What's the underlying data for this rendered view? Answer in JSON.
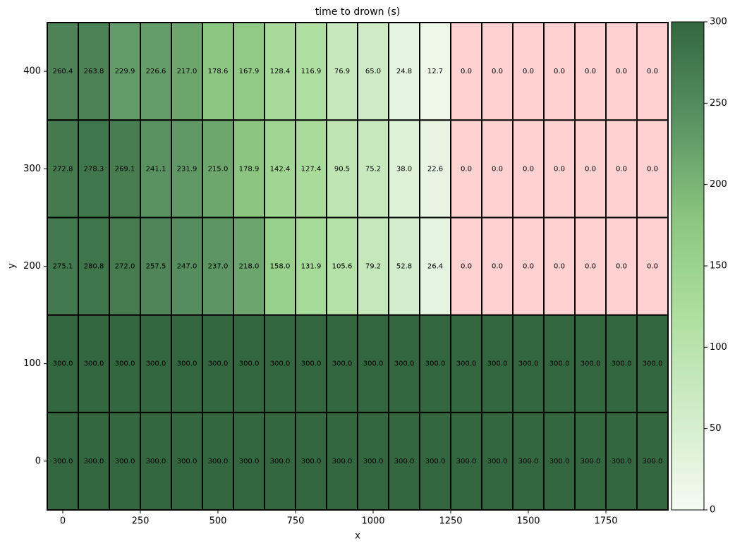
{
  "chart_data": {
    "type": "heatmap",
    "title": "time to drown (s)",
    "xlabel": "x",
    "ylabel": "y",
    "x": [
      0,
      100,
      200,
      300,
      400,
      500,
      600,
      700,
      800,
      900,
      1000,
      1100,
      1200,
      1300,
      1400,
      1500,
      1600,
      1700,
      1800,
      1900
    ],
    "y": [
      0,
      100,
      200,
      300,
      400
    ],
    "z": [
      [
        300,
        300,
        300,
        300,
        300,
        300,
        300,
        300,
        300,
        300,
        300,
        300,
        300,
        300,
        300,
        300,
        300,
        300,
        300,
        300
      ],
      [
        300,
        300,
        300,
        300,
        300,
        300,
        300,
        300,
        300,
        300,
        300,
        300,
        300,
        300,
        300,
        300,
        300,
        300,
        300,
        300
      ],
      [
        275.1,
        280.8,
        272,
        257.5,
        247,
        237,
        218,
        158,
        131.9,
        105.6,
        79.2,
        52.8,
        26.4,
        0,
        0,
        0,
        0,
        0,
        0,
        0
      ],
      [
        272.8,
        278.3,
        269.1,
        241.1,
        231.9,
        215,
        178.9,
        142.4,
        127.4,
        90.5,
        75.2,
        38,
        22.6,
        0,
        0,
        0,
        0,
        0,
        0,
        0
      ],
      [
        260.4,
        263.8,
        229.9,
        226.6,
        217,
        178.6,
        167.9,
        128.4,
        116.9,
        76.9,
        65,
        24.8,
        12.7,
        0,
        0,
        0,
        0,
        0,
        0,
        0
      ]
    ],
    "value_labels": [
      [
        "300.0",
        "300.0",
        "300.0",
        "300.0",
        "300.0",
        "300.0",
        "300.0",
        "300.0",
        "300.0",
        "300.0",
        "300.0",
        "300.0",
        "300.0",
        "300.0",
        "300.0",
        "300.0",
        "300.0",
        "300.0",
        "300.0",
        "300.0"
      ],
      [
        "300.0",
        "300.0",
        "300.0",
        "300.0",
        "300.0",
        "300.0",
        "300.0",
        "300.0",
        "300.0",
        "300.0",
        "300.0",
        "300.0",
        "300.0",
        "300.0",
        "300.0",
        "300.0",
        "300.0",
        "300.0",
        "300.0",
        "300.0"
      ],
      [
        "275.1",
        "280.8",
        "272.0",
        "257.5",
        "247.0",
        "237.0",
        "218.0",
        "158.0",
        "131.9",
        "105.6",
        "79.2",
        "52.8",
        "26.4",
        "0.0",
        "0.0",
        "0.0",
        "0.0",
        "0.0",
        "0.0",
        "0.0"
      ],
      [
        "272.8",
        "278.3",
        "269.1",
        "241.1",
        "231.9",
        "215.0",
        "178.9",
        "142.4",
        "127.4",
        "90.5",
        "75.2",
        "38.0",
        "22.6",
        "0.0",
        "0.0",
        "0.0",
        "0.0",
        "0.0",
        "0.0",
        "0.0"
      ],
      [
        "260.4",
        "263.8",
        "229.9",
        "226.6",
        "217.0",
        "178.6",
        "167.9",
        "128.4",
        "116.9",
        "76.9",
        "65.0",
        "24.8",
        "12.7",
        "0.0",
        "0.0",
        "0.0",
        "0.0",
        "0.0",
        "0.0",
        "0.0"
      ]
    ],
    "xlim": [
      -50,
      1950
    ],
    "ylim": [
      -50,
      450
    ],
    "xticks": [
      0,
      250,
      500,
      750,
      1000,
      1250,
      1500,
      1750
    ],
    "yticks": [
      0,
      100,
      200,
      300,
      400
    ],
    "clim": [
      0,
      300
    ],
    "cticks": [
      0,
      50,
      100,
      150,
      200,
      250,
      300
    ],
    "colormap": [
      "#f5fbf2",
      "#d0ecc8",
      "#addf9f",
      "#8bc57f",
      "#5a9262",
      "#33673f"
    ],
    "zero_color": "#ffd1d1"
  }
}
